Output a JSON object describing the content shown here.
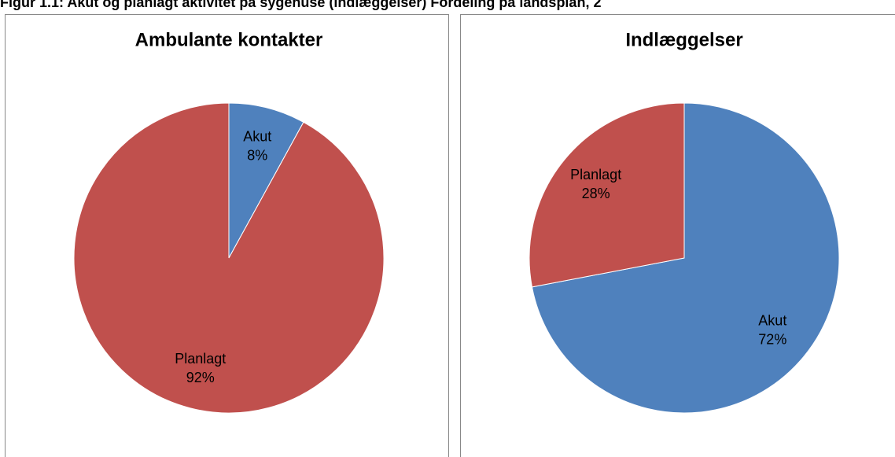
{
  "title": "Figur 1.1: Akut og planlagt aktivitet på sygehuse (indlæggelser) Fordeling på landsplan, 2",
  "chart_data": [
    {
      "type": "pie",
      "title": "Ambulante kontakter",
      "categories": [
        "Akut",
        "Planlagt"
      ],
      "values": [
        8,
        92
      ],
      "value_labels": [
        "8%",
        "92%"
      ],
      "colors": [
        "#4f81bd",
        "#c0504d"
      ]
    },
    {
      "type": "pie",
      "title": "Indlæggelser",
      "categories": [
        "Akut",
        "Planlagt"
      ],
      "values": [
        72,
        28
      ],
      "value_labels": [
        "72%",
        "28%"
      ],
      "colors": [
        "#4f81bd",
        "#c0504d"
      ]
    }
  ]
}
